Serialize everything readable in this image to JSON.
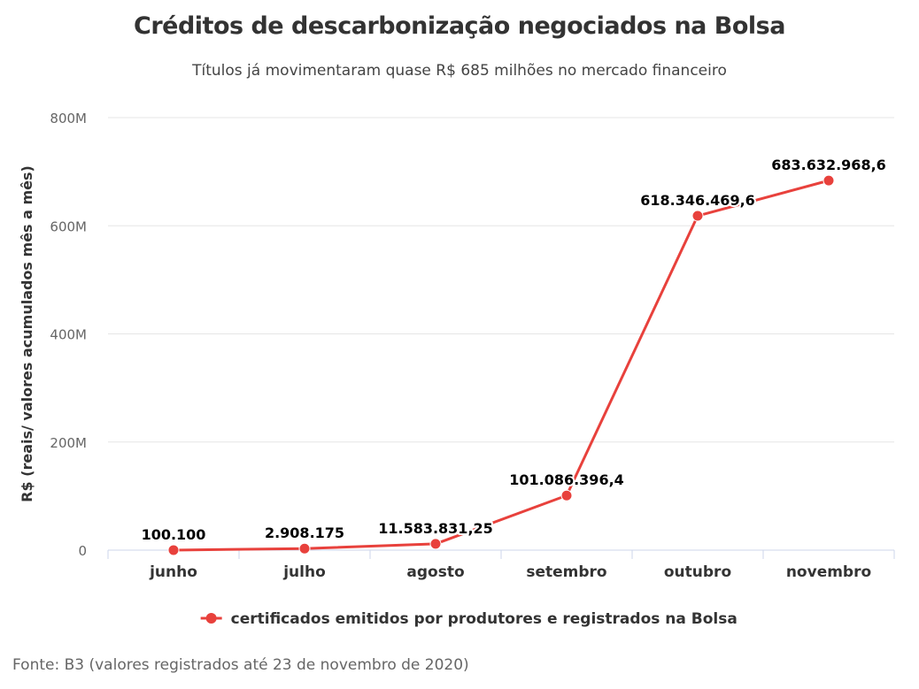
{
  "title": "Créditos de descarbonização negociados na Bolsa",
  "subtitle": "Títulos já movimentaram quase R$ 685 milhões no mercado financeiro",
  "source": "Fonte: B3 (valores registrados até 23 de novembro de 2020)",
  "colors": {
    "series": "#e8413c",
    "grid": "#e6e6e6",
    "axis": "#ccd6eb"
  },
  "chart_data": {
    "type": "line",
    "title": "Créditos de descarbonização negociados na Bolsa",
    "subtitle": "Títulos já movimentaram quase R$ 685 milhões no mercado financeiro",
    "xlabel": "",
    "ylabel": "R$ (reais/ valores acumulados mês a mês)",
    "ylim": [
      0,
      800000000
    ],
    "yticks": [
      0,
      200000000,
      400000000,
      600000000,
      800000000
    ],
    "ytick_labels": [
      "0",
      "200M",
      "400M",
      "600M",
      "800M"
    ],
    "grid": true,
    "legend_position": "bottom-center",
    "categories": [
      "junho",
      "julho",
      "agosto",
      "setembro",
      "outubro",
      "novembro"
    ],
    "series": [
      {
        "name": "certificados emitidos por produtores e registrados na Bolsa",
        "values": [
          100100,
          2908175,
          11583831.25,
          101086396.4,
          618346469.6,
          683632968.6
        ],
        "data_labels": [
          "100.100",
          "2.908.175",
          "11.583.831,25",
          "101.086.396,4",
          "618.346.469,6",
          "683.632.968,6"
        ]
      }
    ]
  }
}
